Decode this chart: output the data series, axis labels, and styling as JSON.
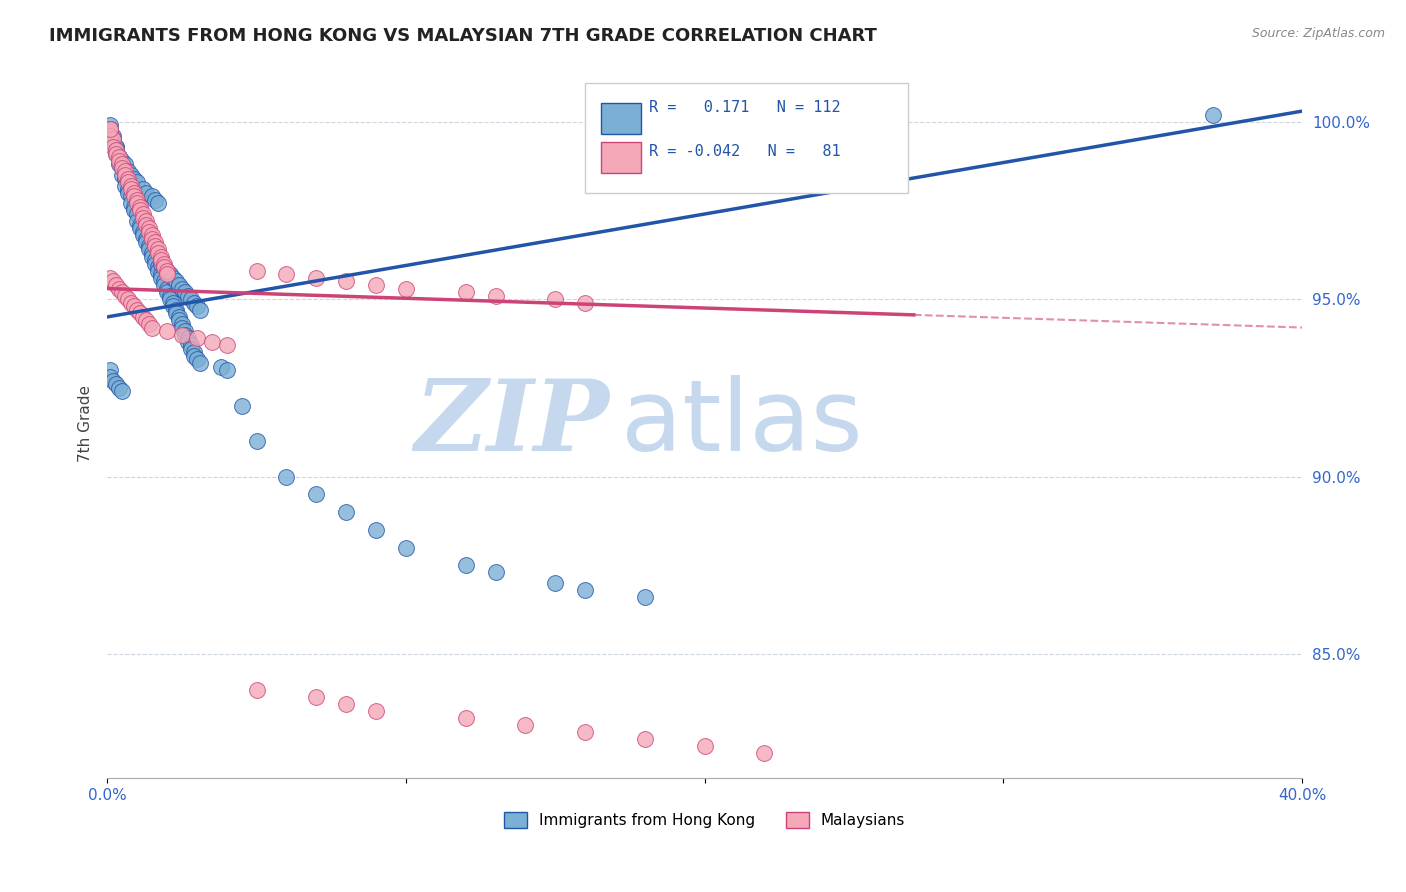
{
  "title": "IMMIGRANTS FROM HONG KONG VS MALAYSIAN 7TH GRADE CORRELATION CHART",
  "source": "Source: ZipAtlas.com",
  "ylabel": "7th Grade",
  "ytick_vals": [
    0.85,
    0.9,
    0.95,
    1.0
  ],
  "xmin": 0.0,
  "xmax": 0.4,
  "ymin": 0.815,
  "ymax": 1.015,
  "legend_blue_label": "Immigrants from Hong Kong",
  "legend_pink_label": "Malaysians",
  "R_blue": 0.171,
  "N_blue": 112,
  "R_pink": -0.042,
  "N_pink": 81,
  "blue_color": "#7BAFD4",
  "pink_color": "#F4A8B8",
  "trendline_blue": "#2255AA",
  "trendline_pink": "#CC4477",
  "watermark_zip": "ZIP",
  "watermark_atlas": "atlas",
  "watermark_color_zip": "#B8D0E8",
  "watermark_color_atlas": "#C8D8E8",
  "blue_scatter_x": [
    0.001,
    0.001,
    0.002,
    0.002,
    0.003,
    0.003,
    0.004,
    0.004,
    0.005,
    0.005,
    0.006,
    0.006,
    0.007,
    0.007,
    0.008,
    0.008,
    0.009,
    0.009,
    0.01,
    0.01,
    0.011,
    0.011,
    0.012,
    0.012,
    0.013,
    0.013,
    0.014,
    0.014,
    0.015,
    0.015,
    0.016,
    0.016,
    0.017,
    0.017,
    0.018,
    0.018,
    0.019,
    0.019,
    0.02,
    0.02,
    0.021,
    0.021,
    0.022,
    0.022,
    0.023,
    0.023,
    0.024,
    0.024,
    0.025,
    0.025,
    0.026,
    0.026,
    0.027,
    0.027,
    0.028,
    0.028,
    0.029,
    0.029,
    0.03,
    0.001,
    0.001,
    0.002,
    0.003,
    0.003,
    0.004,
    0.005,
    0.006,
    0.007,
    0.008,
    0.009,
    0.01,
    0.012,
    0.013,
    0.015,
    0.016,
    0.017,
    0.018,
    0.019,
    0.02,
    0.021,
    0.022,
    0.023,
    0.024,
    0.025,
    0.026,
    0.027,
    0.028,
    0.029,
    0.03,
    0.031,
    0.001,
    0.001,
    0.002,
    0.003,
    0.004,
    0.005,
    0.031,
    0.038,
    0.04,
    0.045,
    0.05,
    0.06,
    0.07,
    0.08,
    0.09,
    0.1,
    0.12,
    0.13,
    0.15,
    0.16,
    0.18,
    0.37
  ],
  "blue_scatter_y": [
    0.999,
    0.997,
    0.996,
    0.994,
    0.993,
    0.991,
    0.99,
    0.988,
    0.987,
    0.985,
    0.984,
    0.982,
    0.981,
    0.98,
    0.979,
    0.977,
    0.976,
    0.975,
    0.974,
    0.972,
    0.971,
    0.97,
    0.969,
    0.968,
    0.967,
    0.966,
    0.965,
    0.964,
    0.963,
    0.962,
    0.961,
    0.96,
    0.959,
    0.958,
    0.957,
    0.956,
    0.955,
    0.954,
    0.953,
    0.952,
    0.951,
    0.95,
    0.949,
    0.948,
    0.947,
    0.946,
    0.945,
    0.944,
    0.943,
    0.942,
    0.941,
    0.94,
    0.939,
    0.938,
    0.937,
    0.936,
    0.935,
    0.934,
    0.933,
    0.998,
    0.996,
    0.995,
    0.993,
    0.992,
    0.99,
    0.989,
    0.988,
    0.986,
    0.985,
    0.984,
    0.983,
    0.981,
    0.98,
    0.979,
    0.978,
    0.977,
    0.96,
    0.959,
    0.958,
    0.957,
    0.956,
    0.955,
    0.954,
    0.953,
    0.952,
    0.951,
    0.95,
    0.949,
    0.948,
    0.947,
    0.93,
    0.928,
    0.927,
    0.926,
    0.925,
    0.924,
    0.932,
    0.931,
    0.93,
    0.92,
    0.91,
    0.9,
    0.895,
    0.89,
    0.885,
    0.88,
    0.875,
    0.873,
    0.87,
    0.868,
    0.866,
    1.002
  ],
  "pink_scatter_x": [
    0.001,
    0.001,
    0.002,
    0.002,
    0.003,
    0.003,
    0.004,
    0.004,
    0.005,
    0.005,
    0.006,
    0.006,
    0.007,
    0.007,
    0.008,
    0.008,
    0.009,
    0.009,
    0.01,
    0.01,
    0.011,
    0.011,
    0.012,
    0.012,
    0.013,
    0.013,
    0.014,
    0.014,
    0.015,
    0.015,
    0.016,
    0.016,
    0.017,
    0.017,
    0.018,
    0.018,
    0.019,
    0.019,
    0.02,
    0.02,
    0.001,
    0.002,
    0.003,
    0.004,
    0.005,
    0.006,
    0.007,
    0.008,
    0.009,
    0.01,
    0.011,
    0.012,
    0.013,
    0.014,
    0.015,
    0.02,
    0.025,
    0.03,
    0.035,
    0.04,
    0.05,
    0.06,
    0.07,
    0.08,
    0.09,
    0.1,
    0.12,
    0.13,
    0.15,
    0.16,
    0.05,
    0.07,
    0.08,
    0.09,
    0.12,
    0.14,
    0.16,
    0.18,
    0.2,
    0.22,
    0.001
  ],
  "pink_scatter_y": [
    0.998,
    0.996,
    0.995,
    0.993,
    0.992,
    0.991,
    0.99,
    0.989,
    0.988,
    0.987,
    0.986,
    0.985,
    0.984,
    0.983,
    0.982,
    0.981,
    0.98,
    0.979,
    0.978,
    0.977,
    0.976,
    0.975,
    0.974,
    0.973,
    0.972,
    0.971,
    0.97,
    0.969,
    0.968,
    0.967,
    0.966,
    0.965,
    0.964,
    0.963,
    0.962,
    0.961,
    0.96,
    0.959,
    0.958,
    0.957,
    0.956,
    0.955,
    0.954,
    0.953,
    0.952,
    0.951,
    0.95,
    0.949,
    0.948,
    0.947,
    0.946,
    0.945,
    0.944,
    0.943,
    0.942,
    0.941,
    0.94,
    0.939,
    0.938,
    0.937,
    0.958,
    0.957,
    0.956,
    0.955,
    0.954,
    0.953,
    0.952,
    0.951,
    0.95,
    0.949,
    0.84,
    0.838,
    0.836,
    0.834,
    0.832,
    0.83,
    0.828,
    0.826,
    0.824,
    0.822,
    0.998
  ],
  "trendline_blue_x0": 0.0,
  "trendline_blue_x1": 0.4,
  "trendline_blue_y0": 0.945,
  "trendline_blue_y1": 1.003,
  "trendline_pink_x0": 0.0,
  "trendline_pink_solid_x1": 0.27,
  "trendline_pink_dash_x1": 0.4,
  "trendline_pink_y0": 0.953,
  "trendline_pink_y1": 0.942
}
